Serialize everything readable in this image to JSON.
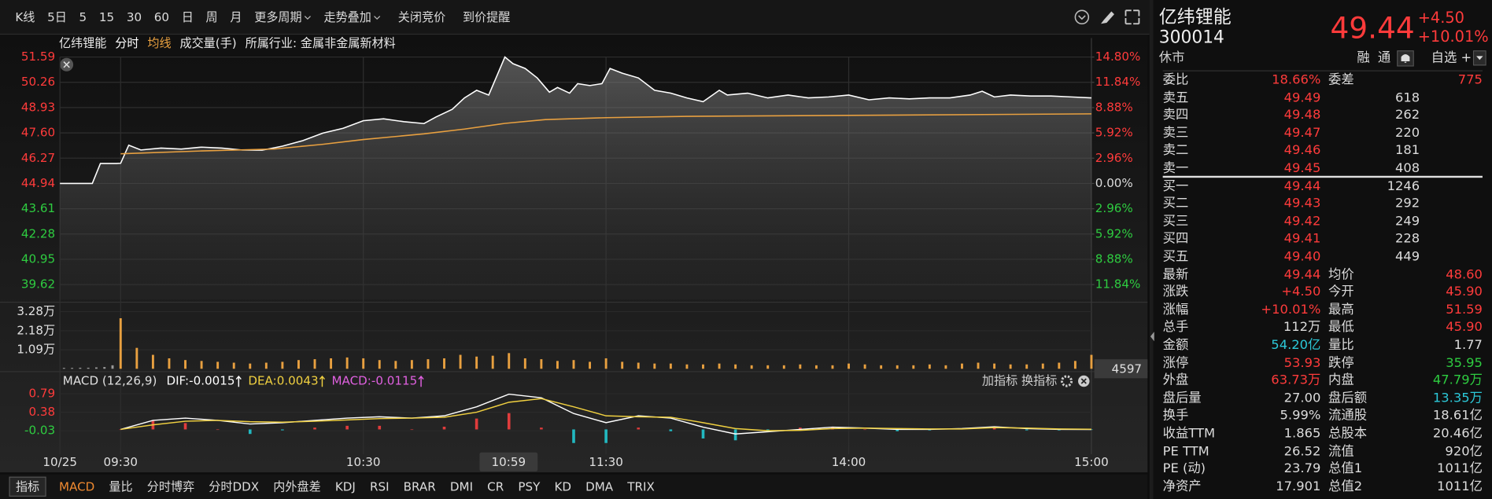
{
  "toolbar": [
    {
      "label": "K线"
    },
    {
      "label": "5日"
    },
    {
      "label": "5"
    },
    {
      "label": "15"
    },
    {
      "label": "30"
    },
    {
      "label": "60"
    },
    {
      "label": "日"
    },
    {
      "label": "周"
    },
    {
      "label": "月"
    },
    {
      "label": "更多周期",
      "dropdown": true
    },
    {
      "label": "走势叠加",
      "dropdown": true
    },
    {
      "label": "关闭竞价"
    },
    {
      "label": "到价提醒"
    }
  ],
  "chart_data": [
    {
      "type": "line",
      "title": "亿纬锂能",
      "volume_label": "成交量(手)",
      "industry": "所属行业: 金属非金属新材料",
      "xlim": [
        -15,
        240
      ],
      "xticks": [
        {
          "value": -15,
          "label": "10/25"
        },
        {
          "value": 0,
          "label": "09:30"
        },
        {
          "value": 60,
          "label": "10:30"
        },
        {
          "value": 120,
          "label": "11:30"
        },
        {
          "value": 180,
          "label": "14:00"
        },
        {
          "value": 240,
          "label": "15:00"
        }
      ],
      "cursor_label": "10:59",
      "ylim": [
        38.84,
        51.59
      ],
      "yticks": [
        51.59,
        50.26,
        48.93,
        {
          "value": 47.6,
          "label": "47.60"
        },
        46.27,
        44.94,
        43.61,
        42.28,
        40.95,
        39.62
      ],
      "y2lim": [
        -13.57,
        14.8
      ],
      "y2ticks": [
        {
          "value": 14.8,
          "label": "14.80%"
        },
        {
          "value": 11.84,
          "label": "11.84%"
        },
        {
          "value": 8.88,
          "label": "8.88%"
        },
        {
          "value": 5.92,
          "label": "5.92%"
        },
        {
          "value": 2.96,
          "label": "2.96%"
        },
        {
          "value": 0,
          "label": "0.00%"
        },
        {
          "value": -2.96,
          "label": "2.96%"
        },
        {
          "value": -5.92,
          "label": "5.92%"
        },
        {
          "value": -8.88,
          "label": "8.88%"
        },
        {
          "value": -11.84,
          "label": "11.84%"
        }
      ],
      "grid": true,
      "series": [
        {
          "name": "分时",
          "color": "#ffffff",
          "x": [
            -15,
            -7,
            -5,
            -1,
            0,
            2,
            5,
            10,
            15,
            20,
            25,
            30,
            35,
            40,
            45,
            50,
            55,
            60,
            65,
            70,
            75,
            78,
            82,
            85,
            88,
            91,
            93,
            95,
            97,
            100,
            103,
            106,
            108,
            111,
            113,
            116,
            119,
            121,
            124,
            128,
            132,
            136,
            140,
            144,
            148,
            150,
            155,
            160,
            165,
            170,
            175,
            180,
            185,
            190,
            195,
            200,
            205,
            210,
            213,
            216,
            220,
            225,
            230,
            235,
            240
          ],
          "values": [
            44.94,
            44.94,
            45.99,
            45.99,
            46.0,
            46.95,
            46.7,
            46.8,
            46.75,
            46.85,
            46.8,
            46.7,
            46.69,
            46.9,
            47.19,
            47.59,
            47.84,
            48.24,
            48.34,
            48.19,
            48.09,
            48.44,
            48.84,
            49.44,
            49.84,
            49.59,
            50.59,
            51.59,
            51.24,
            50.99,
            50.49,
            49.74,
            49.99,
            49.69,
            50.19,
            50.09,
            50.19,
            50.99,
            50.74,
            50.49,
            49.84,
            49.69,
            49.44,
            49.24,
            49.84,
            49.59,
            49.69,
            49.44,
            49.59,
            49.44,
            49.49,
            49.59,
            49.34,
            49.44,
            49.39,
            49.44,
            49.44,
            49.59,
            49.79,
            49.49,
            49.59,
            49.54,
            49.54,
            49.49,
            49.44
          ]
        },
        {
          "name": "均线",
          "color": "#e8a040",
          "x": [
            0,
            20,
            38,
            50,
            60,
            75,
            85,
            95,
            105,
            120,
            140,
            180,
            240
          ],
          "values": [
            46.5,
            46.65,
            46.75,
            47.0,
            47.25,
            47.55,
            47.8,
            48.1,
            48.3,
            48.4,
            48.47,
            48.52,
            48.6
          ]
        }
      ]
    },
    {
      "type": "bar",
      "xlim": [
        -15,
        240
      ],
      "ylim": [
        0,
        3.6
      ],
      "yticks": [
        {
          "value": 3.28,
          "label": "3.28万"
        },
        {
          "value": 2.18,
          "label": "2.18万"
        },
        {
          "value": 1.09,
          "label": "1.09万"
        }
      ],
      "color": "#e8a040",
      "x": [
        -14,
        -12,
        -10,
        -8,
        -6,
        -4,
        -2,
        0,
        4,
        8,
        12,
        16,
        20,
        24,
        28,
        32,
        36,
        40,
        44,
        48,
        52,
        56,
        60,
        64,
        68,
        72,
        76,
        80,
        84,
        88,
        92,
        96,
        100,
        104,
        108,
        112,
        116,
        120,
        124,
        128,
        132,
        136,
        140,
        144,
        148,
        152,
        156,
        160,
        164,
        168,
        172,
        176,
        180,
        184,
        188,
        192,
        196,
        200,
        204,
        208,
        212,
        216,
        220,
        224,
        228,
        232,
        236,
        240
      ],
      "values": [
        0.05,
        0.05,
        0.06,
        0.06,
        0.08,
        0.1,
        0.2,
        2.9,
        1.2,
        0.8,
        0.6,
        0.5,
        0.45,
        0.4,
        0.35,
        0.3,
        0.35,
        0.4,
        0.5,
        0.55,
        0.6,
        0.65,
        0.6,
        0.5,
        0.45,
        0.5,
        0.55,
        0.6,
        0.8,
        0.7,
        0.75,
        0.9,
        0.6,
        0.55,
        0.45,
        0.5,
        0.4,
        0.6,
        0.4,
        0.35,
        0.3,
        0.3,
        0.25,
        0.25,
        0.3,
        0.25,
        0.2,
        0.2,
        0.2,
        0.25,
        0.2,
        0.2,
        0.3,
        0.25,
        0.2,
        0.2,
        0.2,
        0.25,
        0.2,
        0.3,
        0.35,
        0.3,
        0.25,
        0.25,
        0.3,
        0.35,
        0.45,
        0.8
      ],
      "last_value": 4597
    },
    {
      "type": "macd",
      "title": "MACD (12,26,9)",
      "indicator_labels": [
        {
          "text": "DIF:-0.0015",
          "color": "#ffffff"
        },
        {
          "text": "DEA:0.0043",
          "color": "#f0d040"
        },
        {
          "text": "MACD:-0.0115",
          "color": "#e060e0"
        }
      ],
      "buttons": [
        "加指标",
        "换指标"
      ],
      "xlim": [
        -15,
        240
      ],
      "ylim": [
        -0.55,
        0.92
      ],
      "yticks": [
        0.79,
        0.38,
        -0.03
      ],
      "x": [
        0,
        8,
        16,
        24,
        32,
        40,
        48,
        56,
        64,
        72,
        80,
        88,
        96,
        104,
        112,
        120,
        128,
        136,
        144,
        152,
        160,
        168,
        176,
        184,
        192,
        200,
        208,
        216,
        224,
        232,
        240
      ],
      "series": [
        {
          "color": "#ffffff",
          "values": [
            0.0,
            0.2,
            0.25,
            0.2,
            0.12,
            0.15,
            0.2,
            0.25,
            0.28,
            0.25,
            0.3,
            0.5,
            0.78,
            0.7,
            0.35,
            0.15,
            0.3,
            0.25,
            0.05,
            -0.1,
            -0.05,
            0.0,
            0.05,
            0.03,
            0.0,
            0.0,
            0.02,
            0.06,
            0.02,
            0.0,
            -0.0015
          ]
        },
        {
          "color": "#f0d040",
          "values": [
            0.0,
            0.1,
            0.18,
            0.2,
            0.17,
            0.16,
            0.18,
            0.21,
            0.24,
            0.25,
            0.27,
            0.38,
            0.6,
            0.68,
            0.5,
            0.3,
            0.28,
            0.27,
            0.15,
            0.02,
            -0.03,
            -0.02,
            0.02,
            0.03,
            0.02,
            0.01,
            0.01,
            0.04,
            0.03,
            0.01,
            0.0043
          ]
        },
        {
          "type": "histogram",
          "up_color": "#e03c3c",
          "down_color": "#22b8c0",
          "values": [
            0.0,
            0.2,
            0.14,
            0.0,
            -0.1,
            -0.02,
            0.04,
            0.08,
            0.08,
            0.0,
            0.06,
            0.24,
            0.36,
            0.04,
            -0.3,
            -0.3,
            0.04,
            -0.04,
            -0.2,
            -0.24,
            -0.04,
            0.04,
            0.06,
            0.0,
            -0.04,
            -0.02,
            0.02,
            0.04,
            -0.02,
            -0.02,
            -0.0115
          ]
        }
      ]
    }
  ],
  "indicator_tabs": {
    "label": "指标",
    "active": 0,
    "tabs": [
      "MACD",
      "量比",
      "分时博弈",
      "分时DDX",
      "内外盘差",
      "KDJ",
      "RSI",
      "BRAR",
      "DMI",
      "CR",
      "PSY",
      "KD",
      "DMA",
      "TRIX"
    ]
  },
  "quote": {
    "name": "亿纬锂能",
    "code": "300014",
    "price": "49.44",
    "change": "+4.50",
    "change_pct": "+10.01%",
    "status": "休市",
    "tags": [
      "融",
      "通"
    ],
    "watch": "自选 +",
    "color": "#ff3b3b"
  },
  "order_book": {
    "ratio_label": "委比",
    "ratio": "18.66%",
    "diff_label": "委差",
    "diff": "775",
    "price_color": "#ff3b3b",
    "asks": [
      {
        "label": "卖五",
        "price": "49.49",
        "volume": "618"
      },
      {
        "label": "卖四",
        "price": "49.48",
        "volume": "262"
      },
      {
        "label": "卖三",
        "price": "49.47",
        "volume": "220"
      },
      {
        "label": "卖二",
        "price": "49.46",
        "volume": "181"
      },
      {
        "label": "卖一",
        "price": "49.45",
        "volume": "408"
      }
    ],
    "bids": [
      {
        "label": "买一",
        "price": "49.44",
        "volume": "1246"
      },
      {
        "label": "买二",
        "price": "49.43",
        "volume": "292"
      },
      {
        "label": "买三",
        "price": "49.42",
        "volume": "249"
      },
      {
        "label": "买四",
        "price": "49.41",
        "volume": "228"
      },
      {
        "label": "买五",
        "price": "49.40",
        "volume": "449"
      }
    ]
  },
  "stats": [
    [
      {
        "label": "最新",
        "value": "49.44",
        "color": "#ff3b3b"
      },
      {
        "label": "均价",
        "value": "48.60",
        "color": "#ff3b3b"
      }
    ],
    [
      {
        "label": "涨跌",
        "value": "+4.50",
        "color": "#ff3b3b"
      },
      {
        "label": "今开",
        "value": "45.90",
        "color": "#ff3b3b"
      }
    ],
    [
      {
        "label": "涨幅",
        "value": "+10.01%",
        "color": "#ff3b3b"
      },
      {
        "label": "最高",
        "value": "51.59",
        "color": "#ff3b3b"
      }
    ],
    [
      {
        "label": "总手",
        "value": "112万",
        "color": "#dcdcdc"
      },
      {
        "label": "最低",
        "value": "45.90",
        "color": "#ff3b3b"
      }
    ],
    [
      {
        "label": "金额",
        "value": "54.20亿",
        "color": "#2cc8d8"
      },
      {
        "label": "量比",
        "value": "1.77",
        "color": "#dcdcdc"
      }
    ],
    [
      {
        "label": "涨停",
        "value": "53.93",
        "color": "#ff3b3b"
      },
      {
        "label": "跌停",
        "value": "35.95",
        "color": "#2ecc40"
      }
    ],
    [
      {
        "label": "外盘",
        "value": "63.73万",
        "color": "#ff3b3b"
      },
      {
        "label": "内盘",
        "value": "47.79万",
        "color": "#2ecc40"
      }
    ],
    [
      {
        "label": "盘后量",
        "value": "27.00",
        "color": "#dcdcdc"
      },
      {
        "label": "盘后额",
        "value": "13.35万",
        "color": "#2cc8d8"
      }
    ],
    [
      {
        "label": "换手",
        "value": "5.99%",
        "color": "#dcdcdc"
      },
      {
        "label": "流通股",
        "value": "18.61亿",
        "color": "#dcdcdc"
      }
    ],
    [
      {
        "label": "收益TTM",
        "value": "1.865",
        "color": "#dcdcdc"
      },
      {
        "label": "总股本",
        "value": "20.46亿",
        "color": "#dcdcdc"
      }
    ],
    [
      {
        "label": "PE TTM",
        "value": "26.52",
        "color": "#dcdcdc"
      },
      {
        "label": "流值",
        "value": "920亿",
        "color": "#dcdcdc"
      }
    ],
    [
      {
        "label": "PE (动)",
        "value": "23.79",
        "color": "#dcdcdc"
      },
      {
        "label": "总值1",
        "value": "1011亿",
        "color": "#dcdcdc"
      }
    ],
    [
      {
        "label": "净资产",
        "value": "17.901",
        "color": "#dcdcdc"
      },
      {
        "label": "总值2",
        "value": "1011亿",
        "color": "#dcdcdc"
      }
    ]
  ]
}
